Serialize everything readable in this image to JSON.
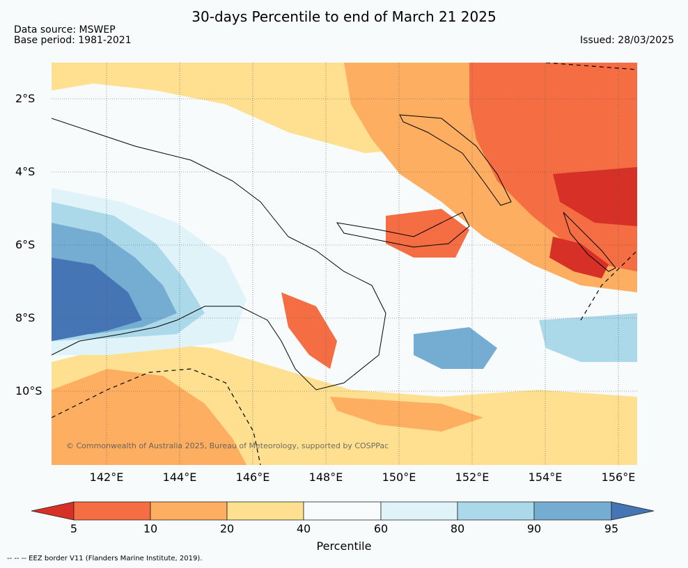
{
  "header": {
    "title": "30-days Percentile to end of March 21 2025",
    "source_line": "Data source: MSWEP",
    "base_line": "Base period: 1981-2021",
    "issued": "Issued: 28/03/2025"
  },
  "map": {
    "lat_ticks": [
      "2°S",
      "4°S",
      "6°S",
      "8°S",
      "10°S"
    ],
    "lon_ticks": [
      "142°E",
      "144°E",
      "146°E",
      "148°E",
      "150°E",
      "152°E",
      "154°E",
      "156°E"
    ],
    "copyright": "© Commonwealth of Australia 2025, Bureau of Meteorology, supported by COSPPac"
  },
  "legend": {
    "label": "Percentile",
    "ticks": [
      "5",
      "10",
      "20",
      "40",
      "60",
      "80",
      "90",
      "95"
    ],
    "colors": {
      "below5": "#d73027",
      "p5_10": "#f46d43",
      "p10_20": "#fdae61",
      "p20_40": "#fee090",
      "p40_60": "#f7fbfc",
      "p60_80": "#e0f3f8",
      "p80_90": "#abd9e9",
      "p90_95": "#74add1",
      "above95": "#4575b4"
    }
  },
  "footer": {
    "eez_note": "--  --  -- EEZ border V11 (Flanders Marine Institute, 2019)."
  }
}
